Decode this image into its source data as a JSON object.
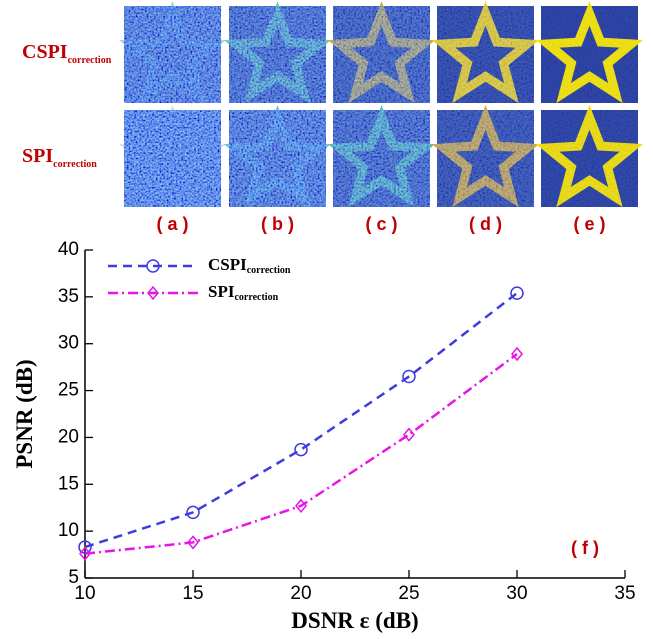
{
  "chart_data": {
    "type": "line",
    "image_rows": [
      {
        "label": "CSPI",
        "label_sub": "correction"
      },
      {
        "label": "SPI",
        "label_sub": "correction"
      }
    ],
    "panel_labels": [
      "( a )",
      "( b )",
      "( c )",
      "( d )",
      "( e )"
    ],
    "annotation": "( f )",
    "x_label": "DSNR  ε (dB)",
    "y_label": "PSNR (dB)",
    "x": [
      10,
      15,
      20,
      25,
      30
    ],
    "series": [
      {
        "name": "CSPI",
        "name_sub": "correction",
        "color": "#3c3ce0",
        "values": [
          8.3,
          12.0,
          18.7,
          26.5,
          35.4
        ]
      },
      {
        "name": "SPI",
        "name_sub": "correction",
        "color": "#e614e6",
        "values": [
          7.6,
          8.8,
          12.7,
          20.3,
          28.9
        ]
      }
    ],
    "xlim": [
      10,
      35
    ],
    "xticks": [
      10,
      15,
      20,
      25,
      30,
      35
    ],
    "ylim": [
      5,
      40
    ],
    "yticks": [
      5,
      10,
      15,
      20,
      25,
      30,
      35,
      40
    ]
  }
}
